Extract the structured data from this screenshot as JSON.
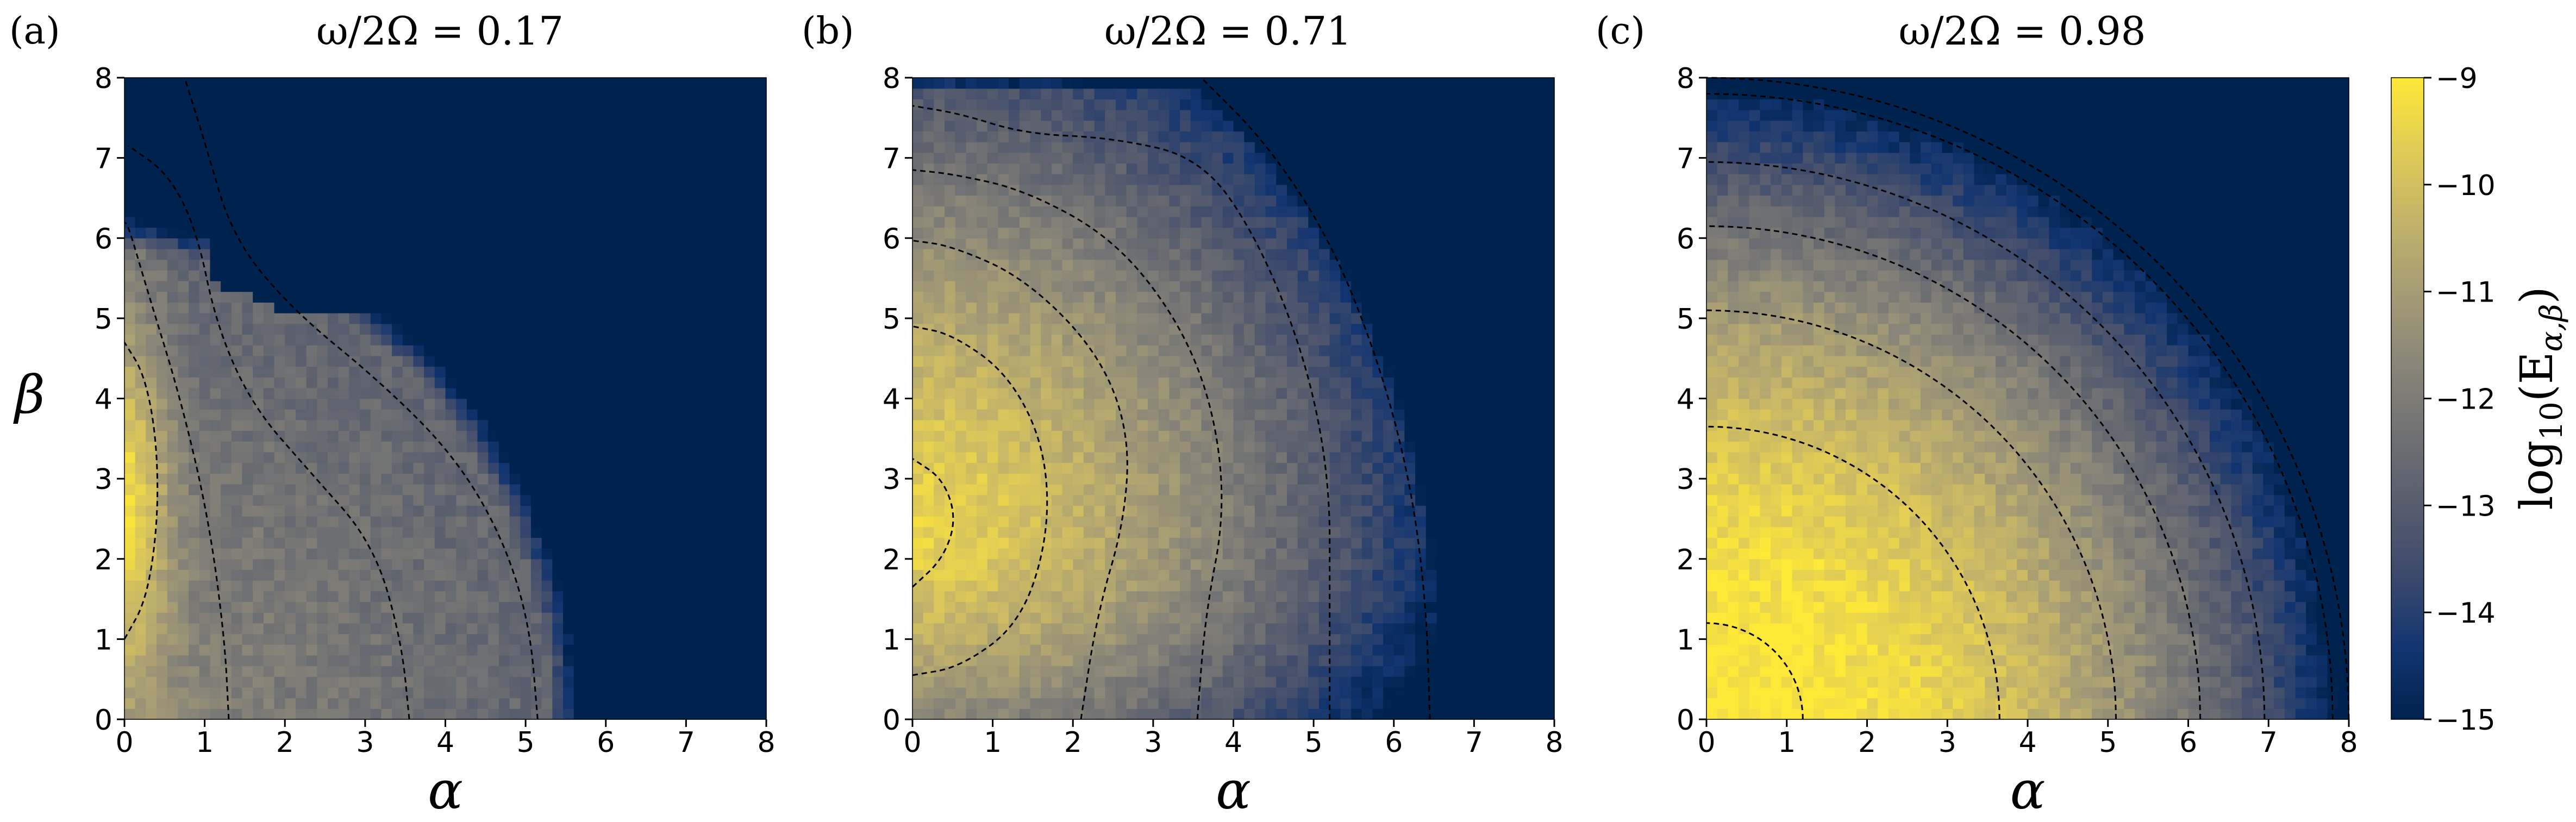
{
  "chart_data": {
    "type": "heatmap",
    "colorbar": {
      "label": "log10(E_{α,β})",
      "label_parts": {
        "prefix": "log",
        "sub1": "10",
        "open": "(E",
        "sub2": "α,β",
        "close": ")"
      },
      "ticks": [
        -9,
        -10,
        -11,
        -12,
        -13,
        -14,
        -15
      ],
      "tick_labels": [
        "−9",
        "−10",
        "−11",
        "−12",
        "−13",
        "−14",
        "−15"
      ],
      "range": [
        -15,
        -9
      ],
      "colormap": "cividis",
      "colors": [
        "#00224e",
        "#123570",
        "#3b496c",
        "#575d6d",
        "#707173",
        "#8a8678",
        "#a59c74",
        "#c3b369",
        "#e1cc55",
        "#fee838"
      ]
    },
    "xlabel": "α",
    "ylabel": "β",
    "xlim": [
      0,
      8
    ],
    "ylim": [
      0,
      8
    ],
    "x_ticks": [
      "0",
      "1",
      "2",
      "3",
      "4",
      "5",
      "6",
      "7",
      "8"
    ],
    "y_ticks": [
      "0",
      "1",
      "2",
      "3",
      "4",
      "5",
      "6",
      "7",
      "8"
    ],
    "panels": [
      {
        "panel_label": "(a)",
        "title": "ω/2Ω = 0.17",
        "omega_ratio": 0.17,
        "contours": [
          [
            [
              0,
              1.0
            ],
            [
              0.28,
              1.5
            ],
            [
              0.42,
              2.5
            ],
            [
              0.4,
              3.5
            ],
            [
              0.25,
              4.3
            ],
            [
              0,
              4.7
            ]
          ],
          [
            [
              1.3,
              0
            ],
            [
              1.25,
              1.0
            ],
            [
              1.05,
              2.5
            ],
            [
              0.7,
              4.0
            ],
            [
              0.3,
              5.3
            ],
            [
              0.05,
              6.15
            ],
            [
              0,
              6.2
            ]
          ],
          [
            [
              3.55,
              0
            ],
            [
              3.45,
              1.0
            ],
            [
              3.1,
              2.2
            ],
            [
              2.3,
              3.1
            ],
            [
              1.6,
              3.9
            ],
            [
              1.15,
              4.9
            ],
            [
              0.9,
              6.1
            ],
            [
              0.55,
              6.8
            ],
            [
              0.05,
              7.15
            ]
          ],
          [
            [
              5.15,
              0
            ],
            [
              5.05,
              1.2
            ],
            [
              4.7,
              2.3
            ],
            [
              4.1,
              3.3
            ],
            [
              3.2,
              4.2
            ],
            [
              2.1,
              5.1
            ],
            [
              1.35,
              6.0
            ],
            [
              1.0,
              7.2
            ],
            [
              0.75,
              8.0
            ]
          ]
        ],
        "hotspot": {
          "center": [
            0.0,
            2.7
          ],
          "spread": [
            0.6,
            2.2
          ]
        }
      },
      {
        "panel_label": "(b)",
        "title": "ω/2Ω = 0.71",
        "omega_ratio": 0.71,
        "contours": [
          [
            [
              0,
              1.65
            ],
            [
              0.38,
              2.0
            ],
            [
              0.55,
              2.5
            ],
            [
              0.38,
              3.0
            ],
            [
              0,
              3.25
            ]
          ],
          [
            [
              0,
              0.55
            ],
            [
              0.6,
              0.65
            ],
            [
              1.35,
              1.2
            ],
            [
              1.7,
              2.3
            ],
            [
              1.65,
              3.4
            ],
            [
              1.2,
              4.3
            ],
            [
              0.5,
              4.8
            ],
            [
              0,
              4.9
            ]
          ],
          [
            [
              2.1,
              0
            ],
            [
              2.3,
              1.3
            ],
            [
              2.65,
              2.5
            ],
            [
              2.7,
              3.6
            ],
            [
              2.3,
              4.6
            ],
            [
              1.4,
              5.5
            ],
            [
              0.5,
              5.9
            ],
            [
              0,
              5.97
            ]
          ],
          [
            [
              3.55,
              0
            ],
            [
              3.65,
              1.3
            ],
            [
              3.9,
              2.6
            ],
            [
              3.75,
              3.9
            ],
            [
              3.3,
              5.0
            ],
            [
              2.5,
              6.0
            ],
            [
              1.4,
              6.6
            ],
            [
              0.5,
              6.8
            ],
            [
              0,
              6.85
            ]
          ],
          [
            [
              5.2,
              0
            ],
            [
              5.2,
              1.5
            ],
            [
              5.2,
              3.0
            ],
            [
              4.9,
              4.5
            ],
            [
              4.3,
              6.0
            ],
            [
              3.6,
              7.0
            ],
            [
              2.5,
              7.25
            ],
            [
              1.4,
              7.3
            ],
            [
              0.6,
              7.55
            ],
            [
              0,
              7.65
            ]
          ],
          [
            [
              6.45,
              0
            ],
            [
              6.4,
              1.5
            ],
            [
              6.2,
              3.0
            ],
            [
              5.8,
              4.5
            ],
            [
              5.2,
              6.0
            ],
            [
              4.4,
              7.2
            ],
            [
              3.6,
              8.0
            ]
          ]
        ],
        "hotspot": {
          "center": [
            0.1,
            2.5
          ],
          "spread": [
            2.5,
            2.6
          ]
        }
      },
      {
        "panel_label": "(c)",
        "title": "ω/2Ω = 0.98",
        "omega_ratio": 0.98,
        "contours": [
          {
            "radius": 1.2
          },
          {
            "radius": 3.65
          },
          {
            "radius": 5.1
          },
          {
            "radius": 6.15
          },
          {
            "radius": 6.95
          },
          {
            "radius": 7.8
          },
          {
            "radius": 8.0
          }
        ],
        "hotspot": {
          "center": [
            1.5,
            1.3
          ],
          "spread": [
            4.2,
            4.2
          ]
        }
      }
    ]
  }
}
